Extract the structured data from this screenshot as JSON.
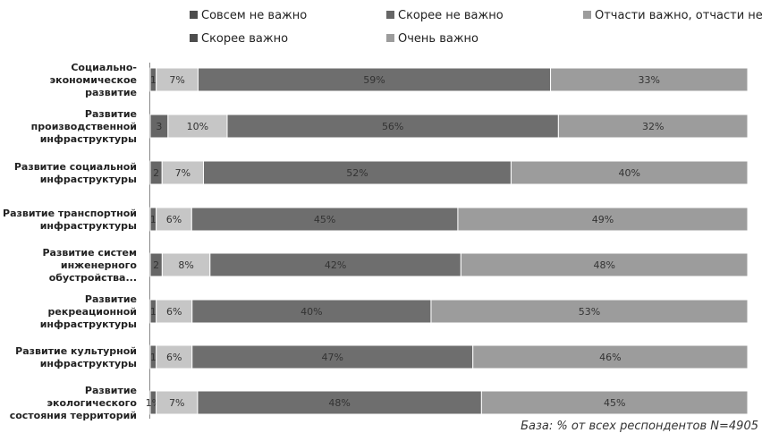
{
  "chart_data": {
    "type": "bar",
    "orientation": "horizontal",
    "stacked": true,
    "title": "",
    "xlabel": "",
    "ylabel": "",
    "xlim": [
      0,
      100
    ],
    "grid": false,
    "legend_position": "top",
    "categories": [
      [
        "Социально-",
        "экономическое",
        "развитие"
      ],
      [
        "Развитие",
        "производственной",
        "инфраструктуры"
      ],
      [
        "Развитие социальной",
        "инфраструктуры"
      ],
      [
        "Развитие транспортной",
        "инфраструктуры"
      ],
      [
        "Развитие систем",
        "инженерного",
        "обустройства..."
      ],
      [
        "Развитие",
        "рекреационной",
        "инфраструктуры"
      ],
      [
        "Развитие культурной",
        "инфраструктуры"
      ],
      [
        "Развитие",
        "экологического",
        "состояния территорий"
      ]
    ],
    "series": [
      {
        "name": "Совсем не важно",
        "color": "#4d4d4d",
        "values": [
          0,
          0,
          0,
          0,
          0,
          0,
          0,
          0
        ],
        "labels": [
          "",
          "",
          "",
          "",
          "",
          "",
          "",
          ""
        ]
      },
      {
        "name": "Скорее не важно",
        "color": "#666666",
        "values": [
          1,
          3,
          2,
          1,
          2,
          1,
          1,
          1
        ],
        "labels": [
          "1",
          "3",
          "2",
          "1",
          "2",
          "1",
          "1",
          "1%"
        ]
      },
      {
        "name": "Отчасти важно, отчасти нет",
        "color": "#c6c6c6",
        "values": [
          7,
          10,
          7,
          6,
          8,
          6,
          6,
          7
        ],
        "labels": [
          "7%",
          "10%",
          "7%",
          "6%",
          "8%",
          "6%",
          "6%",
          "7%"
        ]
      },
      {
        "name": "Скорее важно",
        "color": "#6e6e6e",
        "values": [
          59,
          56,
          52,
          45,
          42,
          40,
          47,
          48
        ],
        "labels": [
          "59%",
          "56%",
          "52%",
          "45%",
          "42%",
          "40%",
          "47%",
          "48%"
        ]
      },
      {
        "name": "Очень важно",
        "color": "#9c9c9c",
        "values": [
          33,
          32,
          40,
          49,
          48,
          53,
          46,
          45
        ],
        "labels": [
          "33%",
          "32%",
          "40%",
          "49%",
          "48%",
          "53%",
          "46%",
          "45%"
        ]
      }
    ]
  },
  "legend": [
    {
      "label": "Совсем не важно",
      "color": "#4d4d4d"
    },
    {
      "label": "Скорее не важно",
      "color": "#666666"
    },
    {
      "label": "Отчасти важно, отчасти нет",
      "color": "#9c9c9c"
    },
    {
      "label": "Скорее важно",
      "color": "#4d4d4d"
    },
    {
      "label": "Очень важно",
      "color": "#9c9c9c"
    }
  ],
  "footnote": "База: % от всех респондентов N=4905"
}
